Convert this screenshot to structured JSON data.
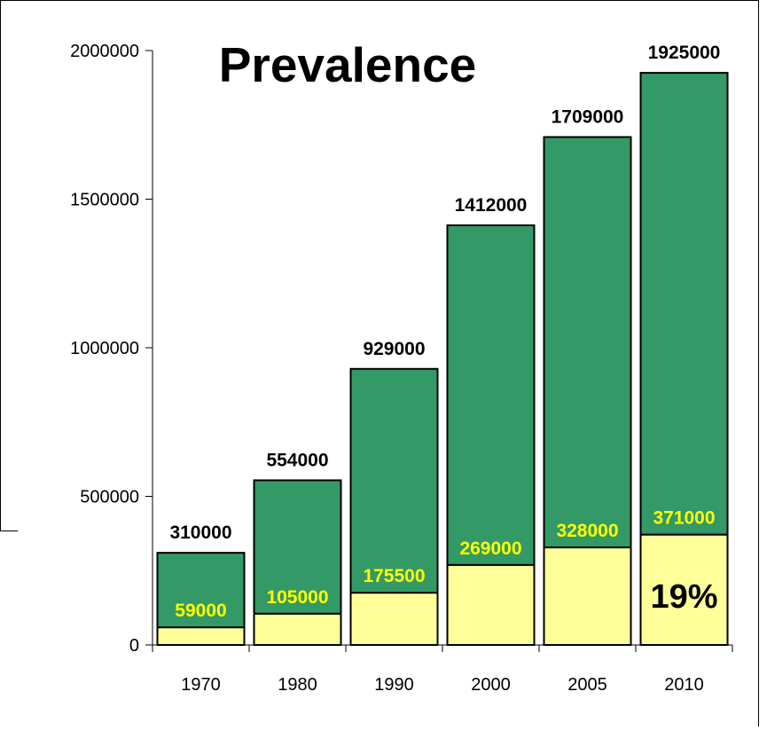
{
  "chart_data": {
    "type": "bar",
    "stacked": true,
    "title": "Prevalence",
    "categories": [
      "1970",
      "1980",
      "1990",
      "2000",
      "2005",
      "2010"
    ],
    "totals": [
      310000,
      554000,
      929000,
      1412000,
      1709000,
      1925000
    ],
    "series": [
      {
        "values": [
          59000,
          105000,
          175500,
          269000,
          328000,
          371000
        ],
        "color": "#FFFF99"
      },
      {
        "values": [
          251000,
          449000,
          753500,
          1143000,
          1381000,
          1554000
        ],
        "color": "#339966"
      }
    ],
    "total_labels": [
      "310000",
      "554000",
      "929000",
      "1412000",
      "1709000",
      "1925000"
    ],
    "sub_labels": [
      "59000",
      "105000",
      "175500",
      "269000",
      "328000",
      "371000"
    ],
    "sub_label_color": "#FFFF00",
    "annotation": "19%",
    "y_ticks": [
      "0",
      "500000",
      "1000000",
      "1500000",
      "2000000"
    ],
    "ylim": [
      0,
      2000000
    ],
    "grid": false,
    "legend": "none"
  }
}
